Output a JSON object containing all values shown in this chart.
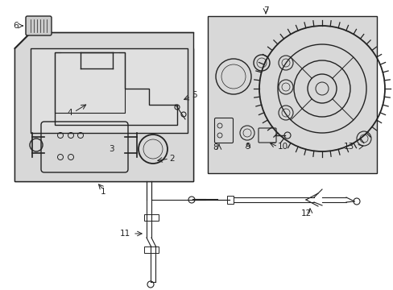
{
  "bg_color": "#ffffff",
  "diagram_bg": "#d8d8d8",
  "line_color": "#222222",
  "lw": 1.0
}
